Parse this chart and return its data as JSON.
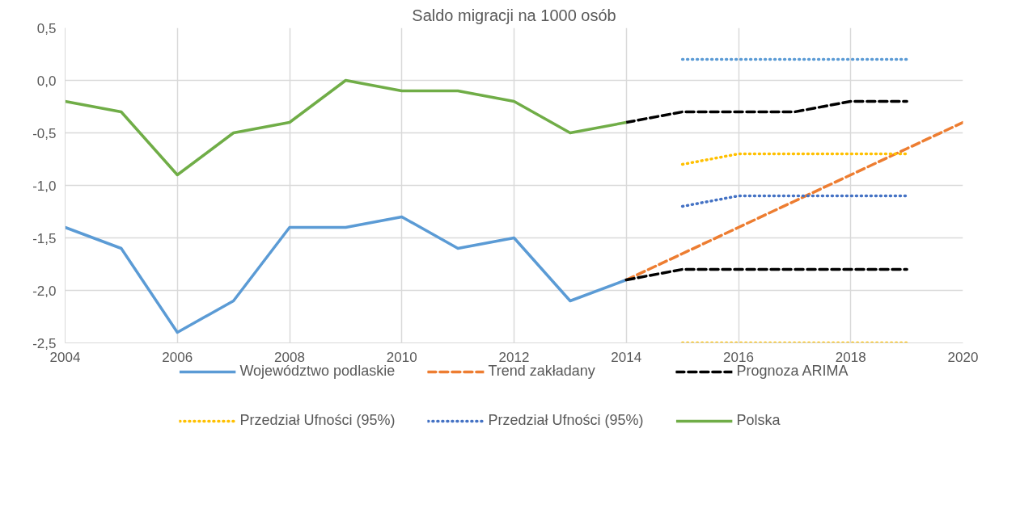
{
  "chart_data": {
    "type": "line",
    "title": "Saldo migracji na 1000 osób",
    "xlim": [
      2004,
      2020
    ],
    "xticks": [
      2004,
      2006,
      2008,
      2010,
      2012,
      2014,
      2016,
      2018,
      2020
    ],
    "ylim": [
      -2.5,
      0.5
    ],
    "yticks": [
      {
        "value": -2.5,
        "label": "-2,5"
      },
      {
        "value": -2.0,
        "label": "-2,0"
      },
      {
        "value": -1.5,
        "label": "-1,5"
      },
      {
        "value": -1.0,
        "label": "-1,0"
      },
      {
        "value": -0.5,
        "label": "-0,5"
      },
      {
        "value": 0.0,
        "label": "0,0"
      },
      {
        "value": 0.5,
        "label": "0,5"
      }
    ],
    "grid": true,
    "legend": "bottom",
    "series": [
      {
        "name": "Województwo podlaskie",
        "color": "#5b9bd5",
        "line_style": "solid",
        "x": [
          2004,
          2005,
          2006,
          2007,
          2008,
          2009,
          2010,
          2011,
          2012,
          2013,
          2014
        ],
        "values": [
          -1.4,
          -1.6,
          -2.4,
          -2.1,
          -1.4,
          -1.4,
          -1.3,
          -1.6,
          -1.5,
          -2.1,
          -1.9
        ]
      },
      {
        "name": "Trend zakładany",
        "color": "#ed7d31",
        "line_style": "dashed",
        "x": [
          2014,
          2015,
          2016,
          2017,
          2018,
          2019,
          2020
        ],
        "values": [
          -1.9,
          -1.65,
          -1.4,
          -1.15,
          -0.9,
          -0.65,
          -0.4
        ]
      },
      {
        "name": "Prognoza ARIMA",
        "color": "#000000",
        "line_style": "dashed",
        "x": [
          2014,
          2015,
          2016,
          2017,
          2018,
          2019
        ],
        "values": [
          -0.4,
          -0.3,
          -0.3,
          -0.3,
          -0.2,
          -0.2
        ]
      },
      {
        "color": "#000000",
        "line_style": "dashed",
        "x": [
          2014,
          2015,
          2016,
          2017,
          2018,
          2019
        ],
        "values": [
          -1.9,
          -1.8,
          -1.8,
          -1.8,
          -1.8,
          -1.8
        ]
      },
      {
        "name": "Przedział Ufności (95%)",
        "color": "#ffc000",
        "line_style": "dotted",
        "x": [
          2015,
          2016,
          2017,
          2018,
          2019
        ],
        "values": [
          -0.8,
          -0.7,
          -0.7,
          -0.7,
          -0.7
        ]
      },
      {
        "color": "#ffc000",
        "line_style": "dotted",
        "x": [
          2015,
          2016,
          2017,
          2018,
          2019
        ],
        "values": [
          -2.5,
          -2.5,
          -2.5,
          -2.5,
          -2.5
        ]
      },
      {
        "name": "Przedział Ufności (95%)",
        "color": "#4472c4",
        "line_style": "dotted",
        "x": [
          2015,
          2016,
          2017,
          2018,
          2019
        ],
        "values": [
          -1.2,
          -1.1,
          -1.1,
          -1.1,
          -1.1
        ]
      },
      {
        "color": "#5b9bd5",
        "line_style": "dotted",
        "x": [
          2015,
          2016,
          2017,
          2018,
          2019
        ],
        "values": [
          0.2,
          0.2,
          0.2,
          0.2,
          0.2
        ]
      },
      {
        "name": "Polska",
        "color": "#70ad47",
        "line_style": "solid",
        "x": [
          2004,
          2005,
          2006,
          2007,
          2008,
          2009,
          2010,
          2011,
          2012,
          2013,
          2014
        ],
        "values": [
          -0.2,
          -0.3,
          -0.9,
          -0.5,
          -0.4,
          0.0,
          -0.1,
          -0.1,
          -0.2,
          -0.5,
          -0.4
        ]
      }
    ]
  }
}
